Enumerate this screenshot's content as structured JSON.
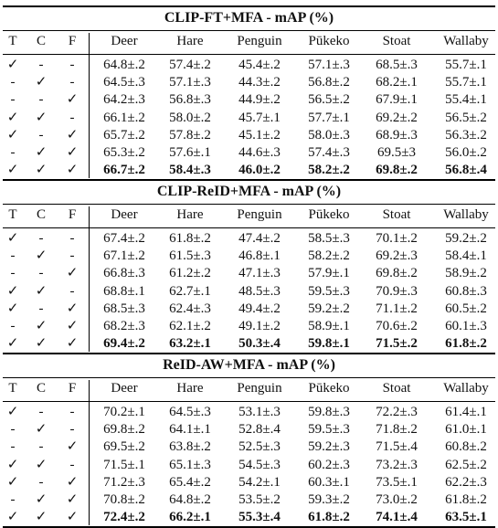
{
  "header": {
    "flags": [
      "T",
      "C",
      "F"
    ],
    "columns": [
      "Deer",
      "Hare",
      "Penguin",
      "Pūkeko",
      "Stoat",
      "Wallaby"
    ]
  },
  "sections": [
    {
      "title": "CLIP-FT+MFA - mAP (%)",
      "rows": [
        {
          "t": "✓",
          "c": "-",
          "f": "-",
          "v": [
            "64.8±.2",
            "57.4±.2",
            "45.4±.2",
            "57.1±.3",
            "68.5±.3",
            "55.7±.1"
          ]
        },
        {
          "t": "-",
          "c": "✓",
          "f": "-",
          "v": [
            "64.5±.3",
            "57.1±.3",
            "44.3±.2",
            "56.8±.2",
            "68.2±.1",
            "55.7±.1"
          ]
        },
        {
          "t": "-",
          "c": "-",
          "f": "✓",
          "v": [
            "64.2±.3",
            "56.8±.3",
            "44.9±.2",
            "56.5±.2",
            "67.9±.1",
            "55.4±.1"
          ]
        },
        {
          "t": "✓",
          "c": "✓",
          "f": "-",
          "v": [
            "66.1±.2",
            "58.0±.2",
            "45.7±.1",
            "57.7±.1",
            "69.2±.2",
            "56.5±.2"
          ]
        },
        {
          "t": "✓",
          "c": "-",
          "f": "✓",
          "v": [
            "65.7±.2",
            "57.8±.2",
            "45.1±.2",
            "58.0±.3",
            "68.9±.3",
            "56.3±.2"
          ]
        },
        {
          "t": "-",
          "c": "✓",
          "f": "✓",
          "v": [
            "65.3±.2",
            "57.6±.1",
            "44.6±.3",
            "57.4±.3",
            "69.5±3",
            "56.0±.2"
          ]
        },
        {
          "t": "✓",
          "c": "✓",
          "f": "✓",
          "bold": true,
          "v": [
            "66.7±.2",
            "58.4±.3",
            "46.0±.2",
            "58.2±.2",
            "69.8±.2",
            "56.8±.4"
          ]
        }
      ]
    },
    {
      "title": "CLIP-ReID+MFA - mAP (%)",
      "rows": [
        {
          "t": "✓",
          "c": "-",
          "f": "-",
          "v": [
            "67.4±.2",
            "61.8±.2",
            "47.4±.2",
            "58.5±.3",
            "70.1±.2",
            "59.2±.2"
          ]
        },
        {
          "t": "-",
          "c": "✓",
          "f": "-",
          "v": [
            "67.1±.2",
            "61.5±.3",
            "46.8±.1",
            "58.2±.2",
            "69.2±.3",
            "58.4±.1"
          ]
        },
        {
          "t": "-",
          "c": "-",
          "f": "✓",
          "v": [
            "66.8±.3",
            "61.2±.2",
            "47.1±.3",
            "57.9±.1",
            "69.8±.2",
            "58.9±.2"
          ]
        },
        {
          "t": "✓",
          "c": "✓",
          "f": "-",
          "v": [
            "68.8±.1",
            "62.7±.1",
            "48.5±.3",
            "59.5±.3",
            "70.9±.3",
            "60.8±.3"
          ]
        },
        {
          "t": "✓",
          "c": "-",
          "f": "✓",
          "v": [
            "68.5±.3",
            "62.4±.3",
            "49.4±.2",
            "59.2±.2",
            "71.1±.2",
            "60.5±.2"
          ]
        },
        {
          "t": "-",
          "c": "✓",
          "f": "✓",
          "v": [
            "68.2±.3",
            "62.1±.2",
            "49.1±.2",
            "58.9±.1",
            "70.6±.2",
            "60.1±.3"
          ]
        },
        {
          "t": "✓",
          "c": "✓",
          "f": "✓",
          "bold": true,
          "v": [
            "69.4±.2",
            "63.2±.1",
            "50.3±.4",
            "59.8±.1",
            "71.5±.2",
            "61.8±.2"
          ]
        }
      ]
    },
    {
      "title": "ReID-AW+MFA - mAP (%)",
      "rows": [
        {
          "t": "✓",
          "c": "-",
          "f": "-",
          "v": [
            "70.2±.1",
            "64.5±.3",
            "53.1±.3",
            "59.8±.3",
            "72.2±.3",
            "61.4±.1"
          ]
        },
        {
          "t": "-",
          "c": "✓",
          "f": "-",
          "v": [
            "69.8±.2",
            "64.1±.1",
            "52.8±.4",
            "59.5±.3",
            "71.8±.2",
            "61.0±.1"
          ]
        },
        {
          "t": "-",
          "c": "-",
          "f": "✓",
          "v": [
            "69.5±.2",
            "63.8±.2",
            "52.5±.3",
            "59.2±.3",
            "71.5±.4",
            "60.8±.2"
          ]
        },
        {
          "t": "✓",
          "c": "✓",
          "f": "-",
          "v": [
            "71.5±.1",
            "65.1±.3",
            "54.5±.3",
            "60.2±.3",
            "73.2±.3",
            "62.5±.2"
          ]
        },
        {
          "t": "✓",
          "c": "-",
          "f": "✓",
          "v": [
            "71.2±.3",
            "65.4±.2",
            "54.2±.1",
            "60.3±.1",
            "73.5±.1",
            "62.2±.3"
          ]
        },
        {
          "t": "-",
          "c": "✓",
          "f": "✓",
          "v": [
            "70.8±.2",
            "64.8±.2",
            "53.5±.2",
            "59.3±.2",
            "73.0±.2",
            "61.8±.2"
          ]
        },
        {
          "t": "✓",
          "c": "✓",
          "f": "✓",
          "bold": true,
          "v": [
            "72.4±.2",
            "66.2±.1",
            "55.3±.4",
            "61.8±.2",
            "74.1±.4",
            "63.5±.1"
          ]
        }
      ]
    }
  ]
}
